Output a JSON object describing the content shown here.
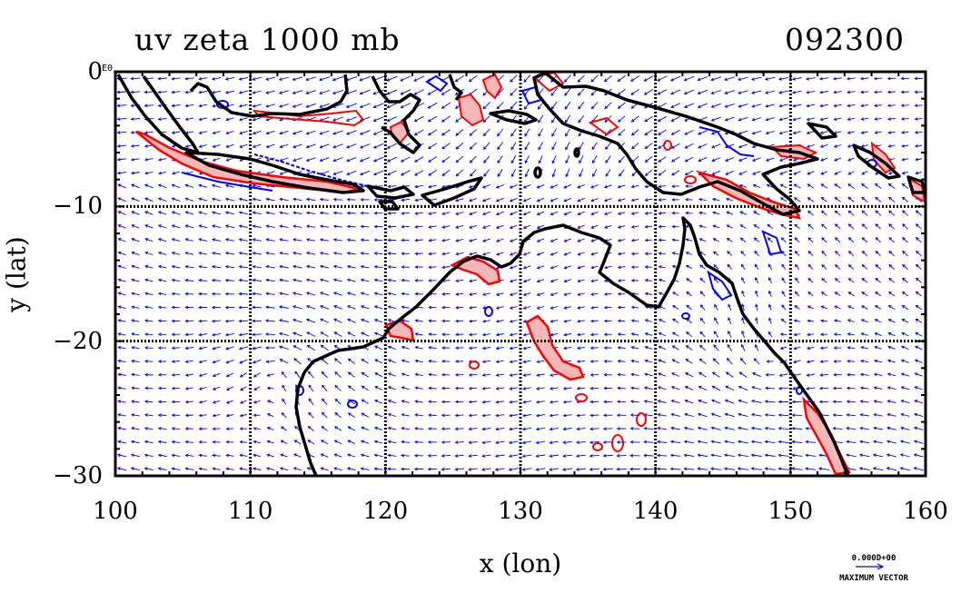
{
  "title_left": "uv zeta 1000 mb",
  "title_right": "092300",
  "x_axis": {
    "label": "x (lon)",
    "range": [
      100,
      160
    ],
    "ticks": [
      "100",
      "110",
      "120",
      "130",
      "140",
      "150",
      "160"
    ]
  },
  "y_axis": {
    "label": "y (lat)",
    "range": [
      -30,
      0
    ],
    "ticks": [
      "0",
      "−10",
      "−20",
      "−30"
    ]
  },
  "y_tick_suffix": "E0",
  "reference_vector": {
    "value": "0.000D+00",
    "caption": "MAXIMUM VECTOR"
  },
  "colors": {
    "coast": "#000000",
    "positive_contour": "#ff0000",
    "negative_contour": "#0000ff",
    "positive_fill": "#f4b8b8",
    "vector": "#0000ff",
    "grid": "#000000"
  },
  "grid": true
}
